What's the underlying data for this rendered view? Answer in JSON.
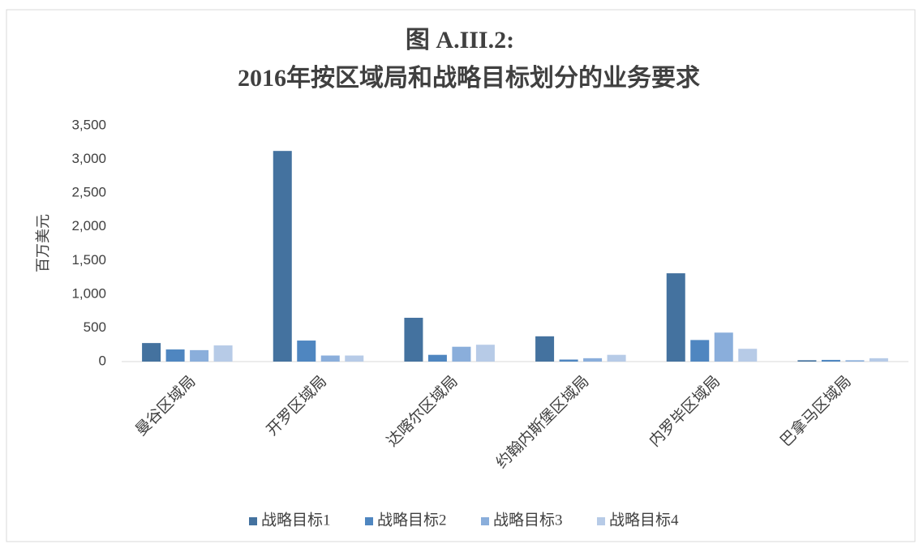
{
  "chart_data": {
    "type": "bar",
    "title": "图 A.III.2:",
    "subtitle": "2016年按区域局和战略目标划分的业务要求",
    "y_label": "百万美元",
    "categories": [
      "曼谷区域局",
      "开罗区域局",
      "达喀尔区域局",
      "约翰内斯堡区域局",
      "内罗毕区域局",
      "巴拿马区域局"
    ],
    "series": [
      {
        "name": "战略目标1",
        "color": "#44729f",
        "values": [
          275,
          3125,
          650,
          375,
          1310,
          20
        ]
      },
      {
        "name": "战略目标2",
        "color": "#4f86c0",
        "values": [
          180,
          312,
          100,
          30,
          320,
          25
        ]
      },
      {
        "name": "战略目标3",
        "color": "#8aaedb",
        "values": [
          170,
          90,
          220,
          50,
          430,
          20
        ]
      },
      {
        "name": "战略目标4",
        "color": "#b7cbe7",
        "values": [
          240,
          90,
          250,
          100,
          190,
          50
        ]
      }
    ],
    "ylim": [
      0,
      3500
    ],
    "yticks": [
      0,
      500,
      {
        "value": 1000,
        "label": "1,000"
      },
      {
        "value": 1500,
        "label": "1,500"
      },
      {
        "value": 2000,
        "label": "2,000"
      },
      {
        "value": 2500,
        "label": "2,500"
      },
      {
        "value": 3000,
        "label": "3,000"
      },
      {
        "value": 3500,
        "label": "3,500"
      }
    ],
    "legend": "bottom"
  }
}
